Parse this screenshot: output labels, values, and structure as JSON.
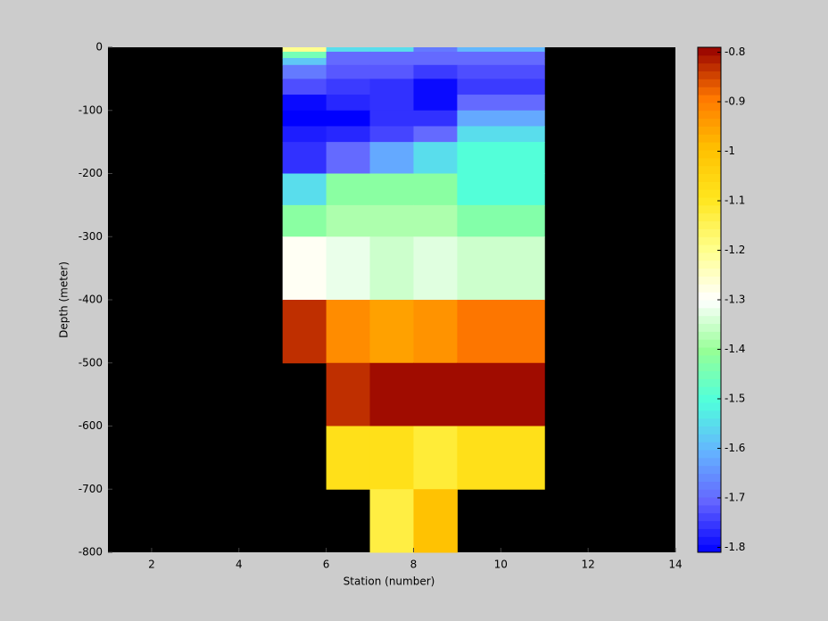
{
  "chart_data": {
    "type": "heatmap",
    "x_label": "Station (number)",
    "y_label": "Depth (meter)",
    "xlim": [
      1,
      14
    ],
    "ylim": [
      -800,
      0
    ],
    "xticks": [
      2,
      4,
      6,
      8,
      10,
      12,
      14
    ],
    "yticks": [
      0,
      -100,
      -200,
      -300,
      -400,
      -500,
      -600,
      -700,
      -800
    ],
    "background": "#000000",
    "x_edges": [
      5,
      6,
      7,
      8,
      9,
      11
    ],
    "y_edges": [
      0,
      -7,
      -17,
      -28,
      -50,
      -75,
      -100,
      -125,
      -150,
      -200,
      -250,
      -300,
      -400,
      -500,
      -600,
      -700,
      -800
    ],
    "values": [
      [
        -1.2,
        -1.55,
        -1.55,
        -1.68,
        -1.6
      ],
      [
        -1.45,
        -1.7,
        -1.7,
        -1.7,
        -1.7
      ],
      [
        -1.58,
        -1.7,
        -1.7,
        -1.7,
        -1.7
      ],
      [
        -1.68,
        -1.72,
        -1.72,
        -1.75,
        -1.73
      ],
      [
        -1.73,
        -1.75,
        -1.76,
        -1.8,
        -1.75
      ],
      [
        -1.8,
        -1.77,
        -1.76,
        -1.8,
        -1.7
      ],
      [
        -1.81,
        -1.81,
        -1.76,
        -1.76,
        -1.62
      ],
      [
        -1.78,
        -1.77,
        -1.74,
        -1.7,
        -1.55
      ],
      [
        -1.76,
        -1.7,
        -1.62,
        -1.55,
        -1.5
      ],
      [
        -1.55,
        -1.42,
        -1.42,
        -1.42,
        -1.5
      ],
      [
        -1.42,
        -1.38,
        -1.38,
        -1.38,
        -1.43
      ],
      [
        -1.29,
        -1.32,
        -1.35,
        -1.33,
        -1.35
      ],
      [
        -0.83,
        -0.92,
        -0.95,
        -0.93,
        -0.89
      ],
      [
        null,
        -0.83,
        -0.8,
        -0.8,
        -0.8
      ],
      [
        null,
        -1.08,
        -1.08,
        -1.12,
        -1.08
      ],
      [
        null,
        null,
        -1.13,
        -1.0,
        null
      ]
    ],
    "colorbar": {
      "clim": [
        -1.81,
        -0.79
      ],
      "ticks": [
        -0.8,
        -0.9,
        -1,
        -1.1,
        -1.2,
        -1.3,
        -1.4,
        -1.5,
        -1.6,
        -1.7,
        -1.8
      ],
      "colors": [
        "#0000ff",
        "#6464ff",
        "#64b4ff",
        "#50ffdc",
        "#96ff96",
        "#ffffff",
        "#ffff8c",
        "#ffe61e",
        "#ffc000",
        "#ff7800",
        "#960000"
      ]
    }
  }
}
